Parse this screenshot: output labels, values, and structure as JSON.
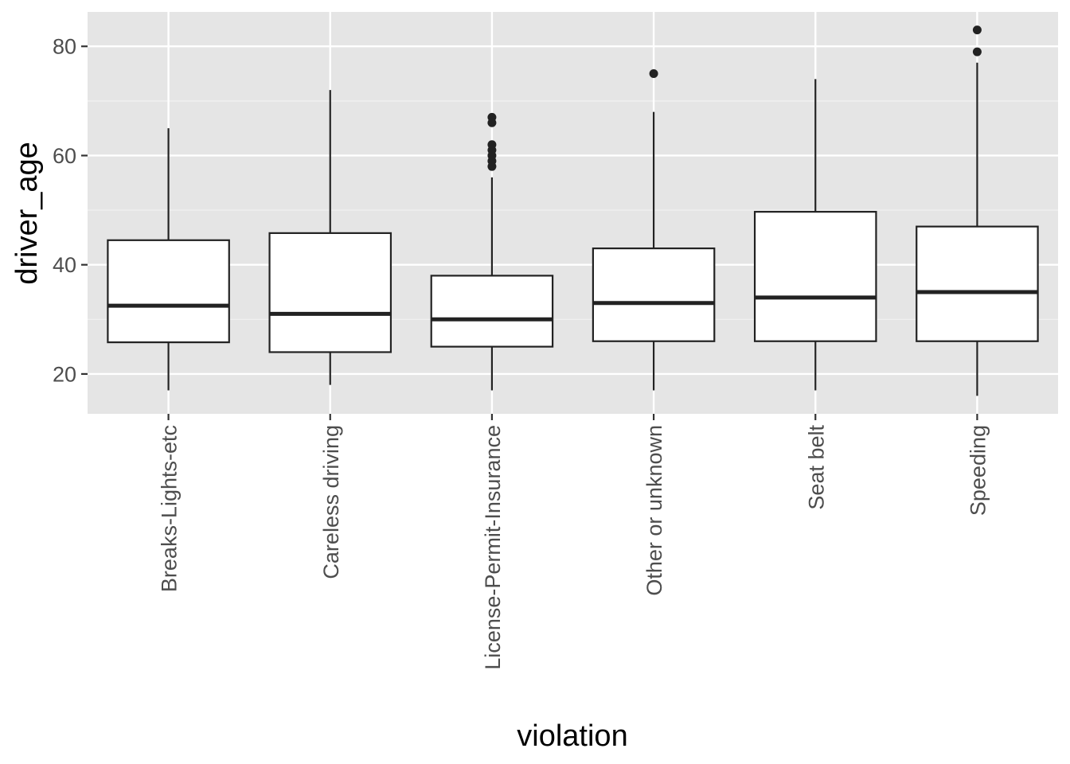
{
  "chart_data": {
    "type": "boxplot",
    "title": "",
    "xlabel": "violation",
    "ylabel": "driver_age",
    "ylim": [
      12.7,
      86.3
    ],
    "y_ticks": [
      20,
      40,
      60,
      80
    ],
    "grid": true,
    "legend": "none",
    "categories": [
      "Breaks-Lights-etc",
      "Careless driving",
      "License-Permit-Insurance",
      "Other or unknown",
      "Seat belt",
      "Speeding"
    ],
    "boxes": [
      {
        "category": "Breaks-Lights-etc",
        "whisker_low": 17,
        "q1": 25.8,
        "median": 32.5,
        "q3": 44.5,
        "whisker_high": 65,
        "outliers": []
      },
      {
        "category": "Careless driving",
        "whisker_low": 18,
        "q1": 24,
        "median": 31,
        "q3": 45.8,
        "whisker_high": 72,
        "outliers": []
      },
      {
        "category": "License-Permit-Insurance",
        "whisker_low": 17,
        "q1": 25,
        "median": 30,
        "q3": 38,
        "whisker_high": 56,
        "outliers": [
          58,
          59,
          60,
          61,
          62,
          66,
          67
        ]
      },
      {
        "category": "Other or unknown",
        "whisker_low": 17,
        "q1": 26,
        "median": 33,
        "q3": 43,
        "whisker_high": 68,
        "outliers": [
          75
        ]
      },
      {
        "category": "Seat belt",
        "whisker_low": 17,
        "q1": 26,
        "median": 34,
        "q3": 49.7,
        "whisker_high": 74,
        "outliers": []
      },
      {
        "category": "Speeding",
        "whisker_low": 16,
        "q1": 26,
        "median": 35,
        "q3": 47,
        "whisker_high": 77,
        "outliers": [
          79,
          83
        ]
      }
    ],
    "colors": {
      "panel_background": "#e5e5e5",
      "grid_major": "#ffffff",
      "grid_minor": "#f2f2f2",
      "box_fill": "#ffffff",
      "box_stroke": "#222222",
      "outlier": "#222222",
      "tick_text": "#4d4d4d",
      "tick_mark": "#333333"
    }
  }
}
